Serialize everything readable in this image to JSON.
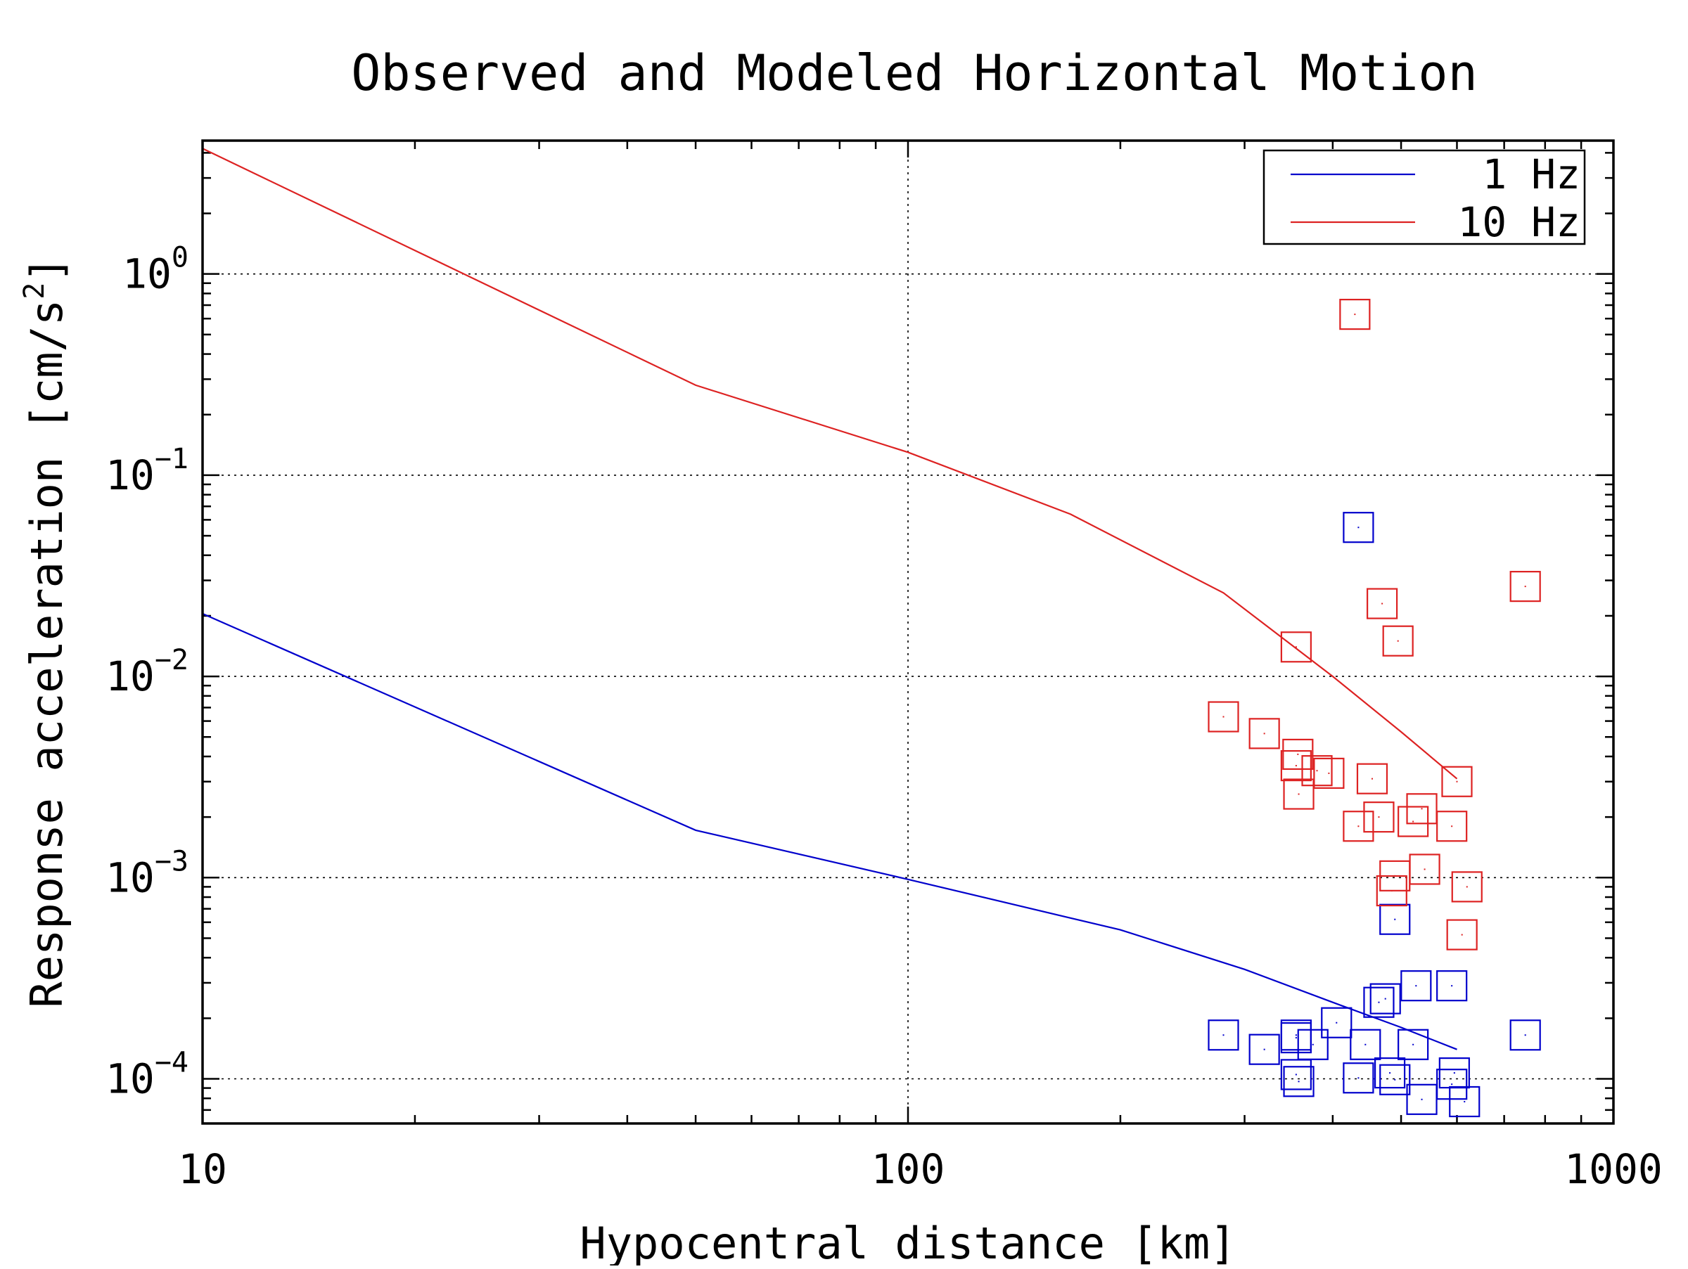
{
  "chart_data": {
    "type": "scatter",
    "title": "Observed and Modeled Horizontal Motion",
    "xlabel": "Hypocentral distance [km]",
    "ylabel_parts": {
      "text": "Response acceleration [cm/s",
      "sup": "2",
      "close": "]"
    },
    "x_scale": "log",
    "y_scale": "log",
    "xlim": [
      10,
      1000
    ],
    "ylim": [
      6e-05,
      4.6
    ],
    "grid": true,
    "legend_position": "top-right",
    "x_ticks": [
      {
        "value": 10,
        "label": "10"
      },
      {
        "value": 100,
        "label": "100"
      },
      {
        "value": 1000,
        "label": "1000"
      }
    ],
    "y_ticks": [
      {
        "value": 1,
        "base": "10",
        "exp": "0"
      },
      {
        "value": 0.1,
        "base": "10",
        "exp": "−1"
      },
      {
        "value": 0.01,
        "base": "10",
        "exp": "−2"
      },
      {
        "value": 0.001,
        "base": "10",
        "exp": "−3"
      },
      {
        "value": 0.0001,
        "base": "10",
        "exp": "−4"
      }
    ],
    "series": [
      {
        "name": "1 Hz",
        "color": "#0000cc",
        "model_curve": [
          {
            "x": 10,
            "y": 0.0205
          },
          {
            "x": 50,
            "y": 0.00172
          },
          {
            "x": 100,
            "y": 0.00098
          },
          {
            "x": 200,
            "y": 0.00055
          },
          {
            "x": 300,
            "y": 0.00035
          },
          {
            "x": 400,
            "y": 0.00024
          },
          {
            "x": 500,
            "y": 0.00018
          },
          {
            "x": 600,
            "y": 0.00014
          }
        ],
        "observed": [
          {
            "x": 435,
            "y": 0.055
          },
          {
            "x": 490,
            "y": 0.00062
          },
          {
            "x": 475,
            "y": 0.00025
          },
          {
            "x": 465,
            "y": 0.00024
          },
          {
            "x": 525,
            "y": 0.00029
          },
          {
            "x": 590,
            "y": 0.00029
          },
          {
            "x": 280,
            "y": 0.000165
          },
          {
            "x": 750,
            "y": 0.000165
          },
          {
            "x": 320,
            "y": 0.00014
          },
          {
            "x": 355,
            "y": 0.000165
          },
          {
            "x": 355,
            "y": 0.00016
          },
          {
            "x": 375,
            "y": 0.000148
          },
          {
            "x": 405,
            "y": 0.00019
          },
          {
            "x": 445,
            "y": 0.000148
          },
          {
            "x": 520,
            "y": 0.000148
          },
          {
            "x": 355,
            "y": 0.000105
          },
          {
            "x": 358,
            "y": 9.7e-05
          },
          {
            "x": 435,
            "y": 0.000101
          },
          {
            "x": 482,
            "y": 0.000107
          },
          {
            "x": 490,
            "y": 9.9e-05
          },
          {
            "x": 595,
            "y": 0.000107
          },
          {
            "x": 590,
            "y": 9.4e-05
          },
          {
            "x": 535,
            "y": 7.9e-05
          },
          {
            "x": 615,
            "y": 7.7e-05
          }
        ]
      },
      {
        "name": "10 Hz",
        "color": "#dd2222",
        "model_curve": [
          {
            "x": 10,
            "y": 4.2
          },
          {
            "x": 50,
            "y": 0.28
          },
          {
            "x": 100,
            "y": 0.13
          },
          {
            "x": 170,
            "y": 0.064
          },
          {
            "x": 280,
            "y": 0.026
          },
          {
            "x": 400,
            "y": 0.01
          },
          {
            "x": 500,
            "y": 0.0053
          },
          {
            "x": 600,
            "y": 0.0031
          }
        ],
        "observed": [
          {
            "x": 430,
            "y": 0.63
          },
          {
            "x": 470,
            "y": 0.023
          },
          {
            "x": 750,
            "y": 0.028
          },
          {
            "x": 355,
            "y": 0.014
          },
          {
            "x": 495,
            "y": 0.015
          },
          {
            "x": 280,
            "y": 0.0063
          },
          {
            "x": 320,
            "y": 0.0052
          },
          {
            "x": 357,
            "y": 0.0041
          },
          {
            "x": 355,
            "y": 0.0036
          },
          {
            "x": 380,
            "y": 0.0034
          },
          {
            "x": 395,
            "y": 0.0033
          },
          {
            "x": 455,
            "y": 0.0031
          },
          {
            "x": 358,
            "y": 0.0026
          },
          {
            "x": 600,
            "y": 0.003
          },
          {
            "x": 435,
            "y": 0.0018
          },
          {
            "x": 465,
            "y": 0.002
          },
          {
            "x": 535,
            "y": 0.0022
          },
          {
            "x": 520,
            "y": 0.0019
          },
          {
            "x": 590,
            "y": 0.0018
          },
          {
            "x": 490,
            "y": 0.00102
          },
          {
            "x": 540,
            "y": 0.0011
          },
          {
            "x": 485,
            "y": 0.00086
          },
          {
            "x": 620,
            "y": 0.0009
          },
          {
            "x": 610,
            "y": 0.00052
          }
        ]
      }
    ]
  }
}
